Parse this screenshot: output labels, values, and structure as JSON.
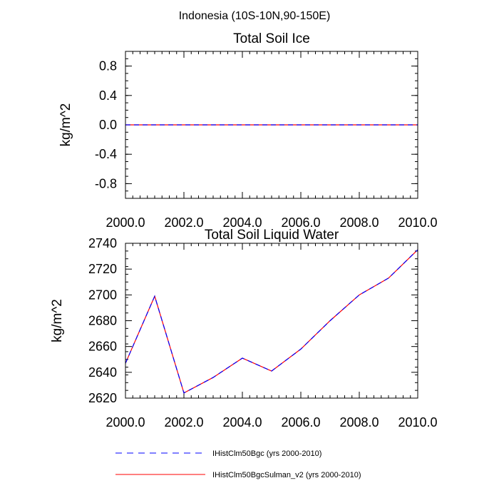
{
  "figure_title": "Indonesia (10S-10N,90-150E)",
  "chart_data": [
    {
      "type": "line",
      "title": "Total Soil Ice",
      "xlabel": "",
      "ylabel": "kg/m^2",
      "xlim": [
        2000,
        2010
      ],
      "ylim": [
        -1.0,
        1.0
      ],
      "x_ticks": [
        "2000.0",
        "2002.0",
        "2004.0",
        "2006.0",
        "2008.0",
        "2010.0"
      ],
      "y_ticks": [
        "-0.8",
        "-0.4",
        "0.0",
        "0.4",
        "0.8"
      ],
      "x": [
        2000,
        2001,
        2002,
        2003,
        2004,
        2005,
        2006,
        2007,
        2008,
        2009,
        2010
      ],
      "series": [
        {
          "name": "IHistClm50Bgc (yrs 2000-2010)",
          "color": "#0000ff",
          "style": "dashed",
          "values": [
            0,
            0,
            0,
            0,
            0,
            0,
            0,
            0,
            0,
            0,
            0
          ]
        },
        {
          "name": "IHistClm50BgcSulman_v2 (yrs 2000-2010)",
          "color": "#ff0000",
          "style": "solid",
          "values": [
            0,
            0,
            0,
            0,
            0,
            0,
            0,
            0,
            0,
            0,
            0
          ]
        }
      ]
    },
    {
      "type": "line",
      "title": "Total Soil Liquid Water",
      "xlabel": "",
      "ylabel": "kg/m^2",
      "xlim": [
        2000,
        2010
      ],
      "ylim": [
        2620,
        2740
      ],
      "x_ticks": [
        "2000.0",
        "2002.0",
        "2004.0",
        "2006.0",
        "2008.0",
        "2010.0"
      ],
      "y_ticks": [
        "2620",
        "2640",
        "2660",
        "2680",
        "2700",
        "2720",
        "2740"
      ],
      "x": [
        2000,
        2001,
        2002,
        2003,
        2004,
        2005,
        2006,
        2007,
        2008,
        2009,
        2010
      ],
      "series": [
        {
          "name": "IHistClm50Bgc (yrs 2000-2010)",
          "color": "#0000ff",
          "style": "dashed",
          "values": [
            2647,
            2699,
            2624,
            2636,
            2651,
            2641,
            2658,
            2680,
            2700,
            2713,
            2735
          ]
        },
        {
          "name": "IHistClm50BgcSulman_v2 (yrs 2000-2010)",
          "color": "#ff0000",
          "style": "solid",
          "values": [
            2647,
            2699,
            2624,
            2636,
            2651,
            2641,
            2658,
            2680,
            2700,
            2713,
            2735
          ]
        }
      ]
    }
  ],
  "legend": [
    {
      "label": "IHistClm50Bgc (yrs 2000-2010)",
      "color": "#0000ff",
      "style": "dashed"
    },
    {
      "label": "IHistClm50BgcSulman_v2 (yrs 2000-2010)",
      "color": "#ff0000",
      "style": "solid"
    }
  ]
}
